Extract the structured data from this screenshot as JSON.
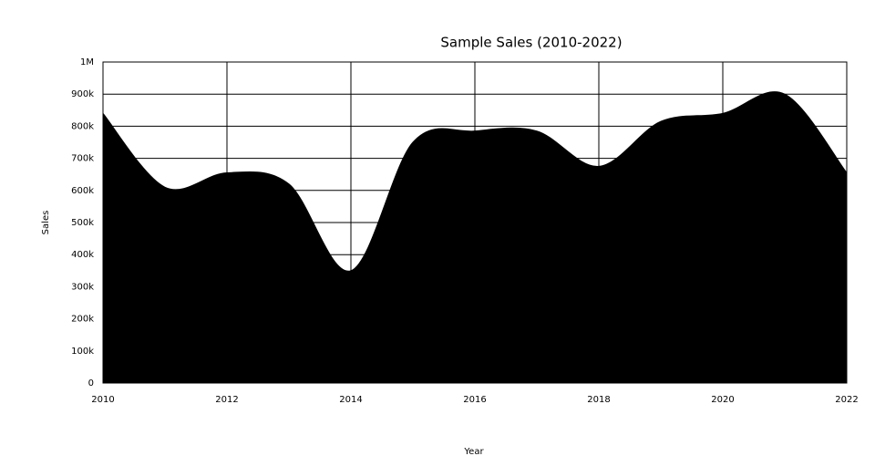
{
  "chart_data": {
    "type": "area",
    "title": "Sample Sales (2010-2022)",
    "x_label": "Year",
    "y_label": "Sales",
    "x": [
      2010,
      2011,
      2012,
      2013,
      2014,
      2015,
      2016,
      2017,
      2018,
      2019,
      2020,
      2021,
      2022
    ],
    "values": [
      840000,
      610000,
      655000,
      620000,
      350000,
      750000,
      785000,
      785000,
      675000,
      815000,
      840000,
      900000,
      655000
    ],
    "color": "#000000",
    "xlim": [
      2010,
      2022
    ],
    "xticks": [
      2010,
      2012,
      2014,
      2016,
      2018,
      2020,
      2022
    ],
    "ylim": [
      0,
      1000000
    ],
    "yticks": [
      0,
      {
        "value": 100000,
        "label": "100k"
      },
      {
        "value": 200000,
        "label": "200k"
      },
      {
        "value": 300000,
        "label": "300k"
      },
      {
        "value": 400000,
        "label": "400k"
      },
      {
        "value": 500000,
        "label": "500k"
      },
      {
        "value": 600000,
        "label": "600k"
      },
      {
        "value": 700000,
        "label": "700k"
      },
      {
        "value": 800000,
        "label": "800k"
      },
      {
        "value": 900000,
        "label": "900k"
      },
      {
        "value": 1000000,
        "label": "1M"
      }
    ],
    "grid": true,
    "smooth": true
  }
}
